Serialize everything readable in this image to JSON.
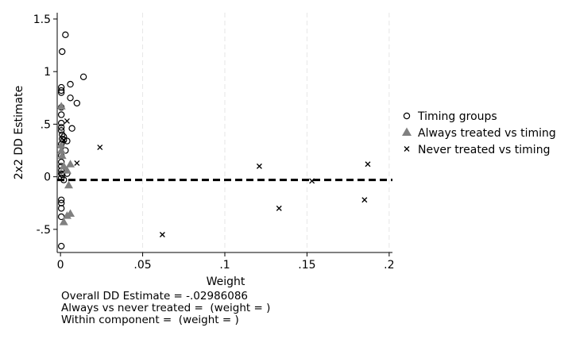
{
  "chart_data": {
    "type": "scatter",
    "xlabel": "Weight",
    "ylabel": "2x2 DD Estimate",
    "xlim": [
      -0.002,
      0.202
    ],
    "ylim": [
      -0.72,
      1.56
    ],
    "xticks": [
      {
        "value": 0,
        "label": "0"
      },
      {
        "value": 0.05,
        "label": ".05"
      },
      {
        "value": 0.1,
        "label": ".1"
      },
      {
        "value": 0.15,
        "label": ".15"
      },
      {
        "value": 0.2,
        "label": ".2"
      }
    ],
    "yticks": [
      {
        "value": -0.5,
        "label": "-.5"
      },
      {
        "value": 0,
        "label": "0"
      },
      {
        "value": 0.5,
        "label": ".5"
      },
      {
        "value": 1,
        "label": "1"
      },
      {
        "value": 1.5,
        "label": "1.5"
      }
    ],
    "grid": "vertical dashed",
    "reference_line": {
      "y": -0.03,
      "style": "dashed"
    },
    "legend_position": "right",
    "series": [
      {
        "name": "Timing groups",
        "marker": "circle",
        "color": "#000000",
        "points": [
          [
            0.003,
            1.35
          ],
          [
            0.001,
            1.19
          ],
          [
            0.014,
            0.95
          ],
          [
            0.006,
            0.88
          ],
          [
            0.0005,
            0.85
          ],
          [
            0.0005,
            0.82
          ],
          [
            0.0005,
            0.8
          ],
          [
            0.006,
            0.75
          ],
          [
            0.01,
            0.7
          ],
          [
            0.0005,
            0.66
          ],
          [
            0.0005,
            0.59
          ],
          [
            0.0005,
            0.51
          ],
          [
            0.0005,
            0.47
          ],
          [
            0.007,
            0.46
          ],
          [
            0.0005,
            0.44
          ],
          [
            0.001,
            0.4
          ],
          [
            0.002,
            0.38
          ],
          [
            0.001,
            0.36
          ],
          [
            0.002,
            0.35
          ],
          [
            0.004,
            0.34
          ],
          [
            0.0005,
            0.31
          ],
          [
            0.003,
            0.25
          ],
          [
            0.0005,
            0.2
          ],
          [
            0.0005,
            0.14
          ],
          [
            0.0005,
            0.1
          ],
          [
            0.0005,
            0.06
          ],
          [
            0.0005,
            0.03
          ],
          [
            0.001,
            0.02
          ],
          [
            0.004,
            0.03
          ],
          [
            0.0005,
            -0.01
          ],
          [
            0.002,
            -0.03
          ],
          [
            0.0005,
            -0.22
          ],
          [
            0.0005,
            -0.25
          ],
          [
            0.0005,
            -0.3
          ],
          [
            0.0005,
            -0.38
          ],
          [
            0.0005,
            -0.66
          ]
        ]
      },
      {
        "name": "Always treated vs timing",
        "marker": "triangle",
        "color": "#808080",
        "points": [
          [
            0.0005,
            0.67
          ],
          [
            0.0005,
            0.3
          ],
          [
            0.0005,
            0.25
          ],
          [
            0.001,
            0.2
          ],
          [
            0.002,
            0.1
          ],
          [
            0.004,
            0.06
          ],
          [
            0.006,
            0.12
          ],
          [
            0.005,
            -0.08
          ],
          [
            0.006,
            -0.35
          ],
          [
            0.004,
            -0.37
          ],
          [
            0.002,
            -0.43
          ]
        ]
      },
      {
        "name": "Never treated vs timing",
        "marker": "x",
        "color": "#000000",
        "points": [
          [
            0.004,
            0.53
          ],
          [
            0.002,
            0.35
          ],
          [
            0.024,
            0.28
          ],
          [
            0.01,
            0.13
          ],
          [
            0.121,
            0.1
          ],
          [
            0.187,
            0.12
          ],
          [
            0.153,
            -0.04
          ],
          [
            0.185,
            -0.22
          ],
          [
            0.133,
            -0.3
          ],
          [
            0.062,
            -0.55
          ]
        ]
      }
    ]
  },
  "notes": {
    "line1": "Overall DD Estimate = -.02986086",
    "line2": "Always vs never treated =  (weight = )",
    "line3": "Within component =  (weight = )"
  }
}
